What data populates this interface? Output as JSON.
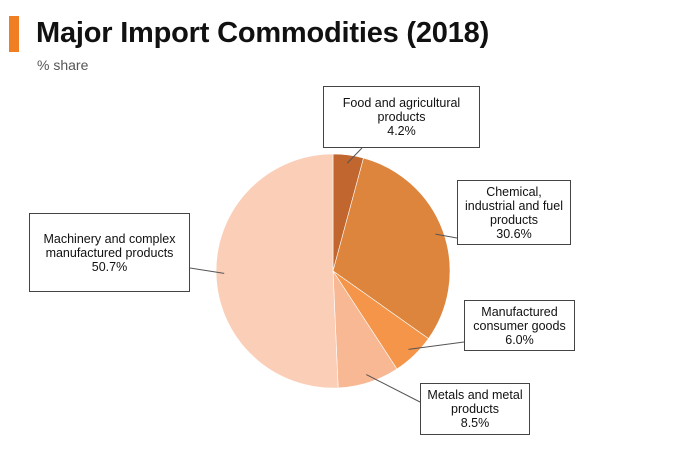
{
  "header": {
    "title": "Major Import Commodities (2018)",
    "subtitle": "% share",
    "accent_color": "#F07F23"
  },
  "chart_data": {
    "type": "pie",
    "title": "Major Import Commodities (2018)",
    "subtitle": "% share",
    "start": "12 o'clock",
    "direction": "clockwise",
    "slices": [
      {
        "label_lines": [
          "Food and agricultural",
          "products"
        ],
        "value": 4.2,
        "value_label": "4.2%",
        "color": "#C0662E"
      },
      {
        "label_lines": [
          "Chemical,",
          "industrial and fuel",
          "products"
        ],
        "value": 30.6,
        "value_label": "30.6%",
        "color": "#DD853D"
      },
      {
        "label_lines": [
          "Manufactured",
          "consumer goods"
        ],
        "value": 6.0,
        "value_label": "6.0%",
        "color": "#F5954A"
      },
      {
        "label_lines": [
          "Metals and metal",
          "products"
        ],
        "value": 8.5,
        "value_label": "8.5%",
        "color": "#F8B894"
      },
      {
        "label_lines": [
          "Machinery and complex",
          "manufactured products"
        ],
        "value": 50.7,
        "value_label": "50.7%",
        "color": "#FBCEB7"
      }
    ]
  }
}
